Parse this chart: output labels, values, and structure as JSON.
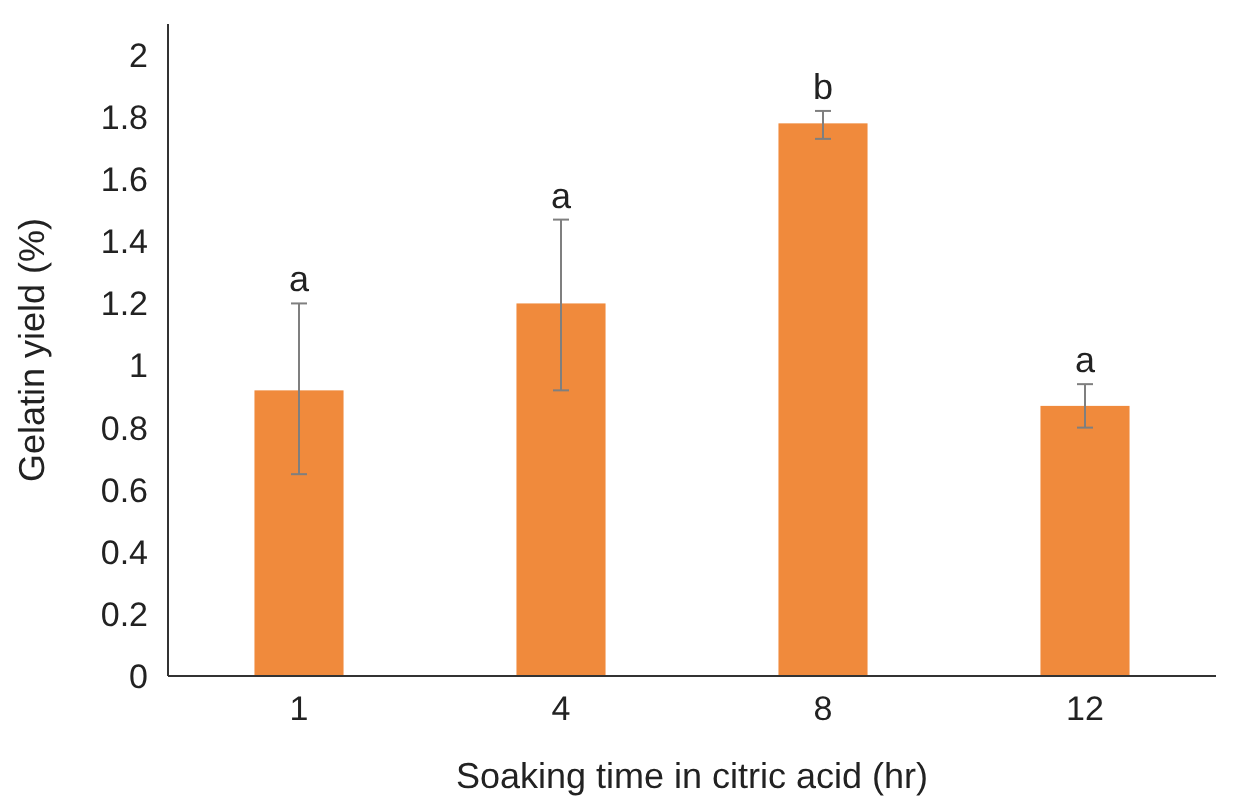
{
  "chart_data": {
    "type": "bar",
    "xlabel": "Soaking time in citric acid (hr)",
    "ylabel": "Gelatin yield (%)",
    "categories": [
      "1",
      "4",
      "8",
      "12"
    ],
    "values": [
      0.92,
      1.2,
      1.78,
      0.87
    ],
    "errors": [
      [
        0.65,
        1.2
      ],
      [
        0.92,
        1.47
      ],
      [
        1.73,
        1.82
      ],
      [
        0.8,
        0.94
      ]
    ],
    "color": "#f08a3c",
    "ylim": [
      0,
      2.1
    ],
    "yticks": [
      0,
      0.2,
      0.4,
      0.6,
      0.8,
      1,
      1.2,
      1.4,
      1.6,
      1.8,
      2
    ],
    "grid": false,
    "annotations": [
      {
        "text": "a",
        "x": "1",
        "y": 1.2
      },
      {
        "text": "a",
        "x": "4",
        "y": 1.47
      },
      {
        "text": "b",
        "x": "8",
        "y": 1.82
      },
      {
        "text": "a",
        "x": "12",
        "y": 0.94
      }
    ]
  }
}
